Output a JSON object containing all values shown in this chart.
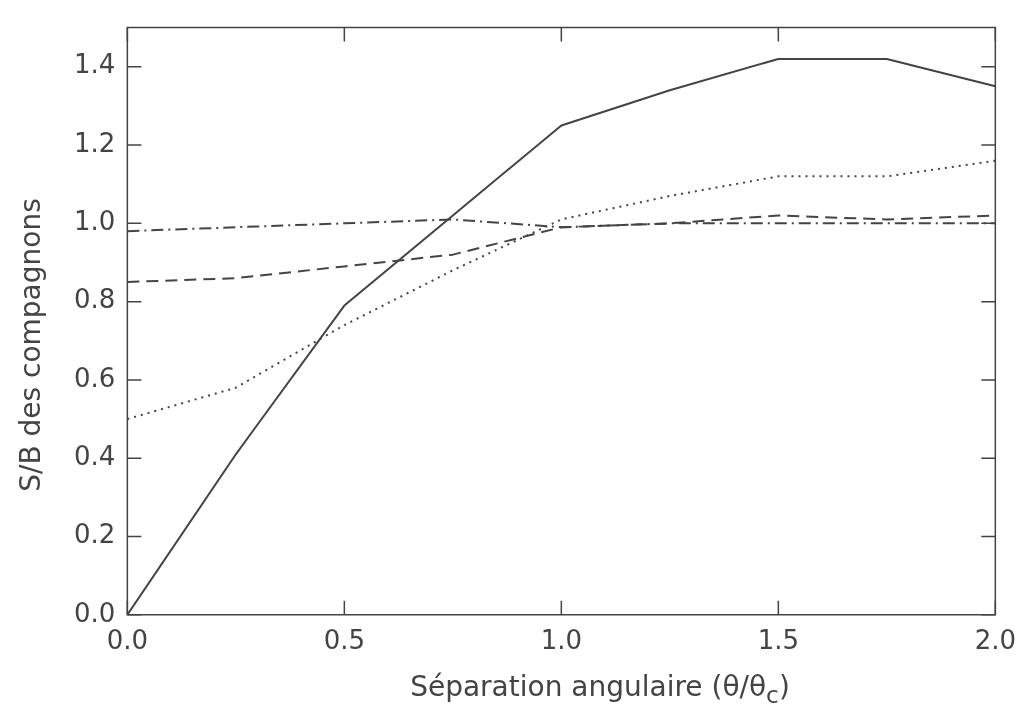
{
  "chart_data": {
    "type": "line",
    "xlabel": "Séparation angulaire (θ/θ$_{c}$)",
    "ylabel": "S/B des compagnons",
    "x": [
      0,
      0.25,
      0.5,
      0.75,
      1.0,
      1.25,
      1.5,
      1.75,
      2.0
    ],
    "series": [
      {
        "color": "#444444",
        "line_style": "solid",
        "values": [
          0,
          0.41,
          0.79,
          1.02,
          1.25,
          1.34,
          1.42,
          1.42,
          1.35
        ]
      },
      {
        "color": "#444444",
        "line_style": "dotted",
        "values": [
          0.5,
          0.58,
          0.74,
          0.88,
          1.01,
          1.07,
          1.12,
          1.12,
          1.16
        ]
      },
      {
        "color": "#444444",
        "line_style": "dashed",
        "values": [
          0.85,
          0.86,
          0.89,
          0.92,
          0.99,
          1.0,
          1.02,
          1.01,
          1.02
        ]
      },
      {
        "color": "#444444",
        "line_style": "dashdot",
        "values": [
          0.98,
          0.99,
          1.0,
          1.01,
          0.99,
          1.0,
          1.0,
          1.0,
          1.0
        ]
      }
    ],
    "xlim": [
      0,
      2.0
    ],
    "xticks": [
      {
        "value": 0,
        "label": "0.0"
      },
      0.5,
      {
        "value": 1,
        "label": "1.0"
      },
      1.5,
      {
        "value": 2,
        "label": "2.0"
      }
    ],
    "ylim": [
      0,
      1.5
    ],
    "yticks": [
      {
        "value": 0,
        "label": "0.0"
      },
      0.2,
      0.4,
      0.6,
      0.8,
      {
        "value": 1,
        "label": "1.0"
      },
      1.2,
      1.4
    ],
    "grid": false,
    "legend": false,
    "marker": "none"
  }
}
